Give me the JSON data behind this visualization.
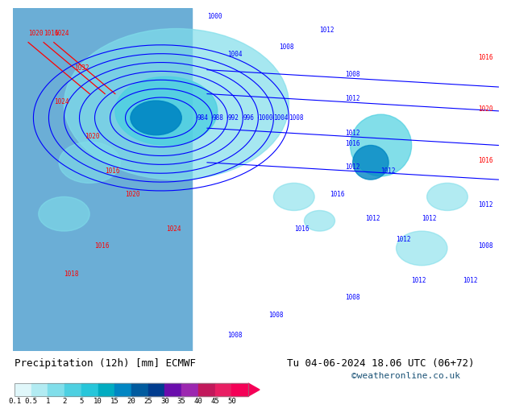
{
  "title_left": "Precipitation (12h) [mm] ECMWF",
  "title_right": "Tu 04-06-2024 18.06 UTC (06+72)",
  "credit": "©weatheronline.co.uk",
  "colorbar_labels": [
    "0.1",
    "0.5",
    "1",
    "2",
    "5",
    "10",
    "15",
    "20",
    "25",
    "30",
    "35",
    "40",
    "45",
    "50"
  ],
  "colorbar_colors": [
    "#e0f7fa",
    "#b2ebf2",
    "#80deea",
    "#4dd0e1",
    "#26c6da",
    "#00acc1",
    "#0086c3",
    "#005b9f",
    "#003c8f",
    "#6a0dad",
    "#9c27b0",
    "#c2185b",
    "#e91e63",
    "#f50057"
  ],
  "map_bg_color": "#a8d5a2",
  "fig_bg_color": "#ffffff",
  "label_fontsize": 9,
  "credit_color": "#1a5276",
  "title_fontsize": 9
}
